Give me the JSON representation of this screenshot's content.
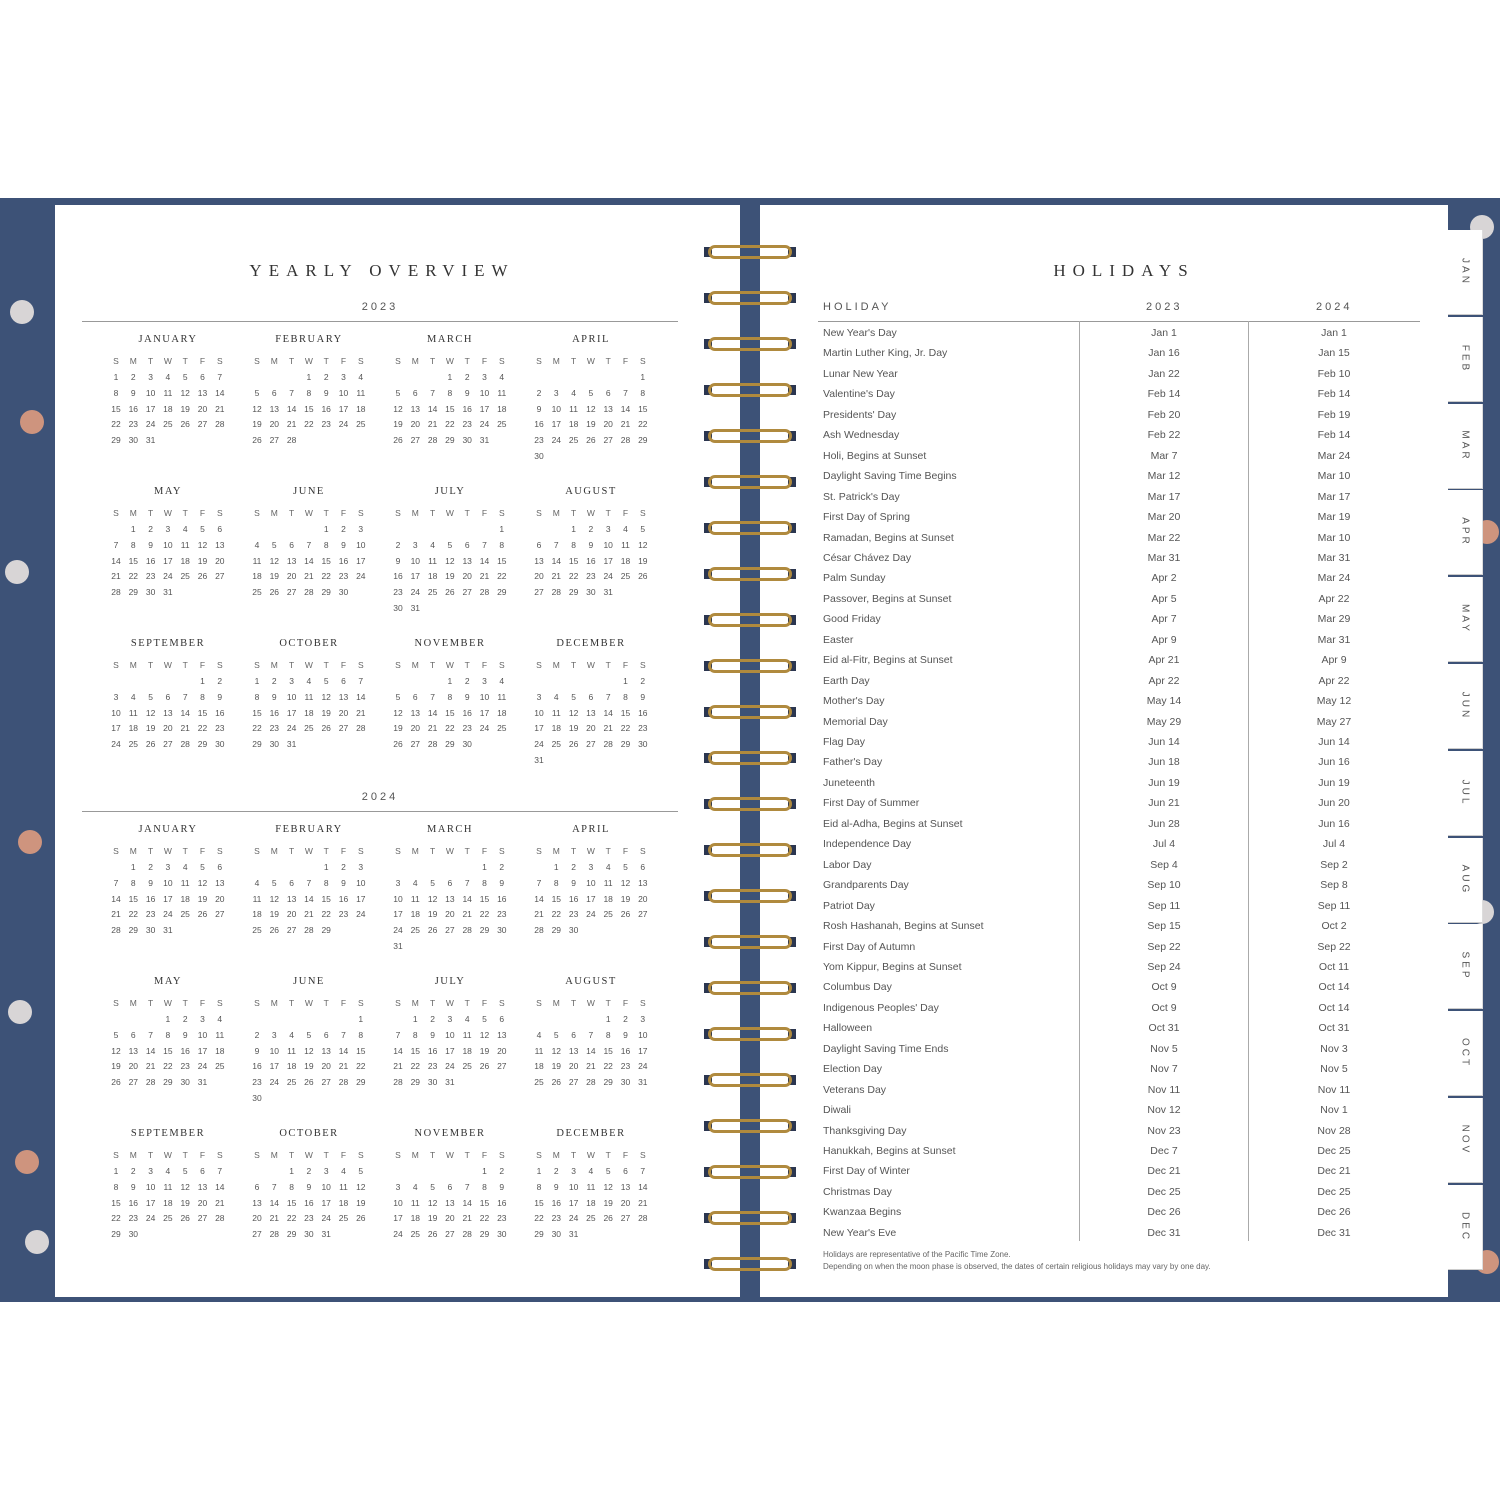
{
  "left_page": {
    "title": "YEARLY OVERVIEW",
    "weekday_letters": [
      "S",
      "M",
      "T",
      "W",
      "T",
      "F",
      "S"
    ],
    "month_names": [
      "JANUARY",
      "FEBRUARY",
      "MARCH",
      "APRIL",
      "MAY",
      "JUNE",
      "JULY",
      "AUGUST",
      "SEPTEMBER",
      "OCTOBER",
      "NOVEMBER",
      "DECEMBER"
    ],
    "years": [
      {
        "label": "2023",
        "year": 2023
      },
      {
        "label": "2024",
        "year": 2024
      }
    ]
  },
  "right_page": {
    "title": "HOLIDAYS",
    "columns": {
      "holiday": "HOLIDAY",
      "y1": "2023",
      "y2": "2024"
    },
    "holidays": [
      {
        "name": "New Year's Day",
        "d2023": "Jan 1",
        "d2024": "Jan 1"
      },
      {
        "name": "Martin Luther King, Jr. Day",
        "d2023": "Jan 16",
        "d2024": "Jan 15"
      },
      {
        "name": "Lunar New Year",
        "d2023": "Jan 22",
        "d2024": "Feb 10"
      },
      {
        "name": "Valentine's Day",
        "d2023": "Feb 14",
        "d2024": "Feb 14"
      },
      {
        "name": "Presidents' Day",
        "d2023": "Feb 20",
        "d2024": "Feb 19"
      },
      {
        "name": "Ash Wednesday",
        "d2023": "Feb 22",
        "d2024": "Feb 14"
      },
      {
        "name": "Holi, Begins at Sunset",
        "d2023": "Mar 7",
        "d2024": "Mar 24"
      },
      {
        "name": "Daylight Saving Time Begins",
        "d2023": "Mar 12",
        "d2024": "Mar 10"
      },
      {
        "name": "St. Patrick's Day",
        "d2023": "Mar 17",
        "d2024": "Mar 17"
      },
      {
        "name": "First Day of Spring",
        "d2023": "Mar 20",
        "d2024": "Mar 19"
      },
      {
        "name": "Ramadan, Begins at Sunset",
        "d2023": "Mar 22",
        "d2024": "Mar 10"
      },
      {
        "name": "César Chávez Day",
        "d2023": "Mar 31",
        "d2024": "Mar 31"
      },
      {
        "name": "Palm Sunday",
        "d2023": "Apr 2",
        "d2024": "Mar 24"
      },
      {
        "name": "Passover, Begins at Sunset",
        "d2023": "Apr 5",
        "d2024": "Apr 22"
      },
      {
        "name": "Good Friday",
        "d2023": "Apr 7",
        "d2024": "Mar 29"
      },
      {
        "name": "Easter",
        "d2023": "Apr 9",
        "d2024": "Mar 31"
      },
      {
        "name": "Eid al-Fitr, Begins at Sunset",
        "d2023": "Apr 21",
        "d2024": "Apr 9"
      },
      {
        "name": "Earth Day",
        "d2023": "Apr 22",
        "d2024": "Apr 22"
      },
      {
        "name": "Mother's Day",
        "d2023": "May 14",
        "d2024": "May 12"
      },
      {
        "name": "Memorial Day",
        "d2023": "May 29",
        "d2024": "May 27"
      },
      {
        "name": "Flag Day",
        "d2023": "Jun 14",
        "d2024": "Jun 14"
      },
      {
        "name": "Father's Day",
        "d2023": "Jun 18",
        "d2024": "Jun 16"
      },
      {
        "name": "Juneteenth",
        "d2023": "Jun 19",
        "d2024": "Jun 19"
      },
      {
        "name": "First Day of Summer",
        "d2023": "Jun 21",
        "d2024": "Jun 20"
      },
      {
        "name": "Eid al-Adha, Begins at Sunset",
        "d2023": "Jun 28",
        "d2024": "Jun 16"
      },
      {
        "name": "Independence Day",
        "d2023": "Jul 4",
        "d2024": "Jul 4"
      },
      {
        "name": "Labor Day",
        "d2023": "Sep 4",
        "d2024": "Sep 2"
      },
      {
        "name": "Grandparents Day",
        "d2023": "Sep 10",
        "d2024": "Sep 8"
      },
      {
        "name": "Patriot Day",
        "d2023": "Sep 11",
        "d2024": "Sep 11"
      },
      {
        "name": "Rosh Hashanah, Begins at Sunset",
        "d2023": "Sep 15",
        "d2024": "Oct 2"
      },
      {
        "name": "First Day of Autumn",
        "d2023": "Sep 22",
        "d2024": "Sep 22"
      },
      {
        "name": "Yom Kippur, Begins at Sunset",
        "d2023": "Sep 24",
        "d2024": "Oct 11"
      },
      {
        "name": "Columbus Day",
        "d2023": "Oct 9",
        "d2024": "Oct 14"
      },
      {
        "name": "Indigenous Peoples' Day",
        "d2023": "Oct 9",
        "d2024": "Oct 14"
      },
      {
        "name": "Halloween",
        "d2023": "Oct 31",
        "d2024": "Oct 31"
      },
      {
        "name": "Daylight Saving Time Ends",
        "d2023": "Nov 5",
        "d2024": "Nov 3"
      },
      {
        "name": "Election Day",
        "d2023": "Nov 7",
        "d2024": "Nov 5"
      },
      {
        "name": "Veterans Day",
        "d2023": "Nov 11",
        "d2024": "Nov 11"
      },
      {
        "name": "Diwali",
        "d2023": "Nov 12",
        "d2024": "Nov 1"
      },
      {
        "name": "Thanksgiving Day",
        "d2023": "Nov 23",
        "d2024": "Nov 28"
      },
      {
        "name": "Hanukkah, Begins at Sunset",
        "d2023": "Dec 7",
        "d2024": "Dec 25"
      },
      {
        "name": "First Day of Winter",
        "d2023": "Dec 21",
        "d2024": "Dec 21"
      },
      {
        "name": "Christmas Day",
        "d2023": "Dec 25",
        "d2024": "Dec 25"
      },
      {
        "name": "Kwanzaa Begins",
        "d2023": "Dec 26",
        "d2024": "Dec 26"
      },
      {
        "name": "New Year's Eve",
        "d2023": "Dec 31",
        "d2024": "Dec 31"
      }
    ],
    "footnote_1": "Holidays are representative of the Pacific Time Zone.",
    "footnote_2": "Depending on when the moon phase is observed, the dates of certain religious holidays may vary by one day."
  },
  "tabs": [
    "JAN",
    "FEB",
    "MAR",
    "APR",
    "MAY",
    "JUN",
    "JUL",
    "AUG",
    "SEP",
    "OCT",
    "NOV",
    "DEC"
  ],
  "colors": {
    "cover": "#3d5277",
    "coil": "#b08a3e",
    "floral_peach": "#e8a07f",
    "floral_white": "#f3ece6"
  }
}
